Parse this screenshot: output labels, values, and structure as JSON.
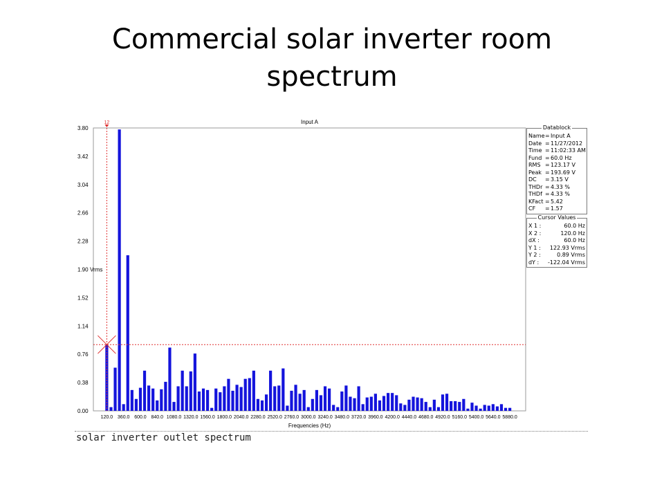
{
  "slide": {
    "title_line1": "Commercial solar inverter room",
    "title_line2": "spectrum"
  },
  "chart_data": {
    "type": "bar",
    "title": "Input A",
    "xlabel": "Frequencies (Hz)",
    "ylabel": "Vrms",
    "ylim": [
      0,
      3.8
    ],
    "y_ticks": [
      "0.00",
      "0.38",
      "0.76",
      "1.14",
      "1.52",
      "1.90",
      "2.28",
      "2.66",
      "3.04",
      "3.42",
      "3.80"
    ],
    "x_ticks": [
      "120.0",
      "360.0",
      "600.0",
      "840.0",
      "1080.0",
      "1320.0",
      "1560.0",
      "1800.0",
      "2040.0",
      "2280.0",
      "2520.0",
      "2760.0",
      "3000.0",
      "3240.0",
      "3480.0",
      "3720.0",
      "3960.0",
      "4200.0",
      "4440.0",
      "4680.0",
      "4920.0",
      "5160.0",
      "5400.0",
      "5640.0",
      "5880.0"
    ],
    "x_start": 120,
    "x_step": 60,
    "cursor": {
      "label": "12",
      "x": 120,
      "y": 0.89
    },
    "bar_color": "#1414dc",
    "values": [
      0.89,
      0.05,
      0.58,
      3.78,
      0.09,
      2.09,
      0.28,
      0.16,
      0.31,
      0.54,
      0.34,
      0.3,
      0.14,
      0.29,
      0.39,
      0.85,
      0.12,
      0.33,
      0.54,
      0.33,
      0.53,
      0.77,
      0.26,
      0.3,
      0.28,
      0.04,
      0.3,
      0.25,
      0.33,
      0.43,
      0.27,
      0.35,
      0.32,
      0.43,
      0.44,
      0.54,
      0.16,
      0.14,
      0.22,
      0.54,
      0.33,
      0.34,
      0.57,
      0.07,
      0.27,
      0.35,
      0.23,
      0.28,
      0.05,
      0.16,
      0.28,
      0.21,
      0.33,
      0.3,
      0.08,
      0.05,
      0.26,
      0.34,
      0.19,
      0.17,
      0.33,
      0.09,
      0.18,
      0.19,
      0.23,
      0.14,
      0.2,
      0.24,
      0.24,
      0.21,
      0.1,
      0.08,
      0.15,
      0.19,
      0.18,
      0.17,
      0.12,
      0.05,
      0.15,
      0.05,
      0.22,
      0.23,
      0.13,
      0.13,
      0.12,
      0.16,
      0.03,
      0.11,
      0.07,
      0.03,
      0.08,
      0.07,
      0.09,
      0.06,
      0.09,
      0.04,
      0.04
    ]
  },
  "datablock": {
    "title": "Datablock",
    "rows": [
      {
        "k": "Name",
        "v": "Input A"
      },
      {
        "k": "Date",
        "v": "11/27/2012"
      },
      {
        "k": "Time",
        "v": "11:02:33 AM"
      },
      {
        "k": "Fund",
        "v": "60.0   Hz"
      },
      {
        "k": "RMS",
        "v": "123.17 V"
      },
      {
        "k": "Peak",
        "v": "193.69 V"
      },
      {
        "k": "DC",
        "v": "3.15 V"
      },
      {
        "k": "THDr",
        "v": "4.33 %"
      },
      {
        "k": "THDf",
        "v": "4.33 %"
      },
      {
        "k": "KFact",
        "v": "5.42"
      },
      {
        "k": "CF",
        "v": "1.57"
      }
    ]
  },
  "cursor_values": {
    "title": "Cursor Values",
    "rows": [
      {
        "k": "X 1 :",
        "v": "60.0   Hz"
      },
      {
        "k": "X 2 :",
        "v": "120.0   Hz"
      },
      {
        "k": "dX :",
        "v": "60.0   Hz"
      },
      {
        "k": "Y 1 :",
        "v": "122.93 Vrms"
      },
      {
        "k": "Y 2 :",
        "v": "0.89 Vrms"
      },
      {
        "k": "dY :",
        "v": "-122.04 Vrms"
      }
    ]
  },
  "caption": "solar inverter outlet spectrum"
}
